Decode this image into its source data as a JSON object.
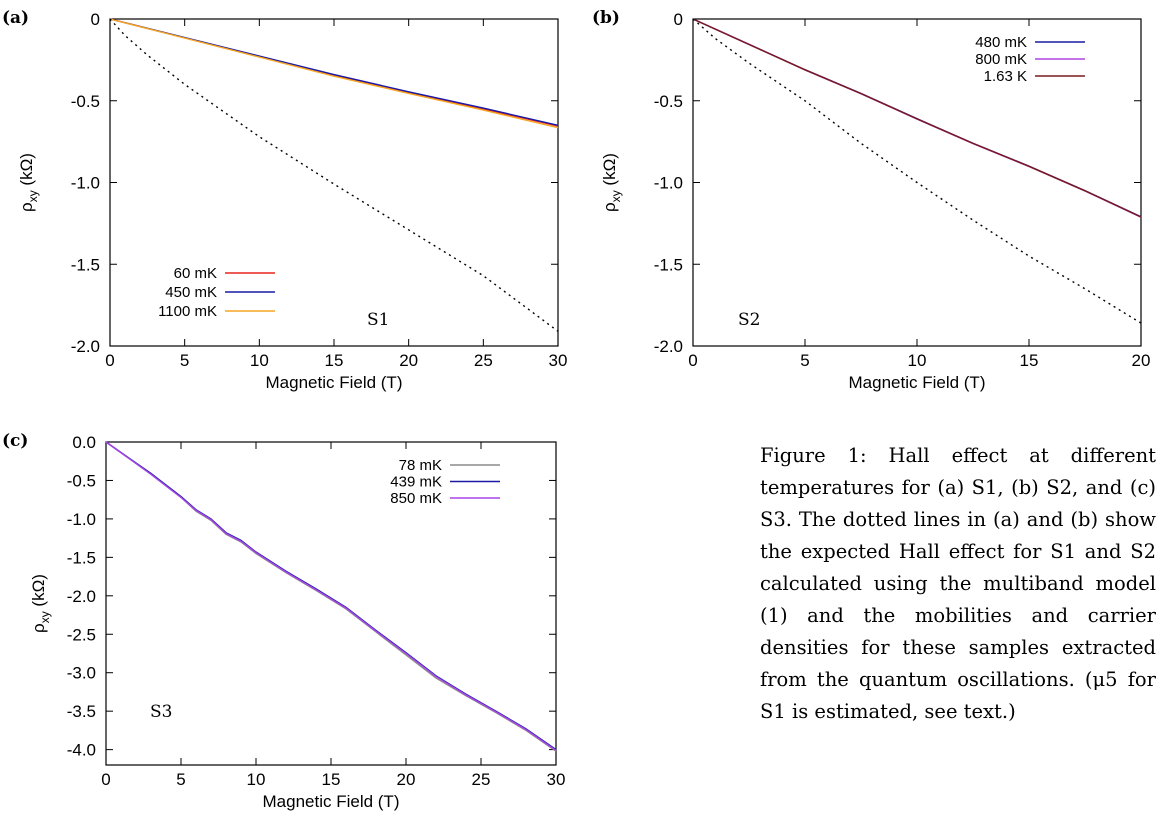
{
  "caption": "Figure 1: Hall effect at different temperatures for (a) S1, (b) S2, and (c) S3. The dotted lines in (a) and (b) show the expected Hall effect for S1 and S2 calculated using the multiband model (1) and the mobilities and carrier densities for these samples extracted from the quantum oscillations. (μ5 for S1 is estimated, see text.)",
  "chart_data": [
    {
      "panel": "(a)",
      "type": "line",
      "xlabel": "Magnetic Field  (T)",
      "ylabel": "ρxy  (kΩ)",
      "xlim": [
        0,
        30
      ],
      "ylim": [
        -2.0,
        0
      ],
      "xticks": [
        "0",
        "5",
        "10",
        "15",
        "20",
        "25",
        "30"
      ],
      "yticks": [
        "0",
        "-0.5",
        "-1.0",
        "-1.5",
        "-2.0"
      ],
      "annotation": "S1",
      "legend_position": "bottom-left",
      "series": [
        {
          "name": "60 mK",
          "color": "#e8251b",
          "x": [
            0,
            5,
            10,
            15,
            20,
            25,
            30
          ],
          "y": [
            0,
            -0.115,
            -0.23,
            -0.345,
            -0.45,
            -0.55,
            -0.655
          ]
        },
        {
          "name": "450 mK",
          "color": "#1a1aa6",
          "x": [
            0,
            5,
            10,
            15,
            20,
            25,
            30
          ],
          "y": [
            0,
            -0.113,
            -0.227,
            -0.34,
            -0.445,
            -0.545,
            -0.65
          ]
        },
        {
          "name": "1100 mK",
          "color": "#f5a623",
          "x": [
            0,
            5,
            10,
            15,
            20,
            25,
            30
          ],
          "y": [
            0,
            -0.117,
            -0.233,
            -0.35,
            -0.455,
            -0.557,
            -0.665
          ]
        },
        {
          "name": "",
          "color": "#000000",
          "style": "dotted",
          "x": [
            0,
            1,
            2.5,
            5,
            7.5,
            10,
            15,
            20,
            25,
            30
          ],
          "y": [
            0,
            -0.1,
            -0.22,
            -0.4,
            -0.56,
            -0.72,
            -1.01,
            -1.29,
            -1.57,
            -1.91
          ]
        }
      ]
    },
    {
      "panel": "(b)",
      "type": "line",
      "xlabel": "Magnetic Field  (T)",
      "ylabel": "ρxy  (kΩ)",
      "xlim": [
        0,
        20
      ],
      "ylim": [
        -2.0,
        0
      ],
      "xticks": [
        "0",
        "5",
        "10",
        "15",
        "20"
      ],
      "yticks": [
        "0",
        "-0.5",
        "-1.0",
        "-1.5",
        "-2.0"
      ],
      "annotation": "S2",
      "legend_position": "top-right",
      "series": [
        {
          "name": "480 mK",
          "color": "#1a1aa6",
          "x": [
            0,
            2.5,
            5,
            7.5,
            10,
            12.5,
            15,
            17.5,
            20
          ],
          "y": [
            0,
            -0.155,
            -0.31,
            -0.455,
            -0.61,
            -0.76,
            -0.9,
            -1.05,
            -1.21
          ]
        },
        {
          "name": "800 mK",
          "color": "#b044e0",
          "x": [
            0,
            2.5,
            5,
            7.5,
            10,
            12.5,
            15,
            17.5,
            20
          ],
          "y": [
            0,
            -0.155,
            -0.312,
            -0.457,
            -0.612,
            -0.762,
            -0.902,
            -1.052,
            -1.212
          ]
        },
        {
          "name": "1.63 K",
          "color": "#7a1a1a",
          "x": [
            0,
            2.5,
            5,
            7.5,
            10,
            12.5,
            15,
            17.5,
            20
          ],
          "y": [
            0,
            -0.156,
            -0.311,
            -0.456,
            -0.611,
            -0.761,
            -0.901,
            -1.051,
            -1.211
          ]
        },
        {
          "name": "",
          "color": "#000000",
          "style": "dotted",
          "x": [
            0,
            1,
            2.5,
            5,
            7.5,
            10,
            12.5,
            15,
            17.5,
            20
          ],
          "y": [
            0,
            -0.12,
            -0.27,
            -0.5,
            -0.76,
            -1.0,
            -1.23,
            -1.45,
            -1.65,
            -1.86
          ]
        }
      ]
    },
    {
      "panel": "(c)",
      "type": "line",
      "xlabel": "Magnetic Field  (T)",
      "ylabel": "ρxy  (kΩ)",
      "xlim": [
        0,
        30
      ],
      "ylim": [
        -4.2,
        0.0
      ],
      "xticks": [
        "0",
        "5",
        "10",
        "15",
        "20",
        "25",
        "30"
      ],
      "yticks": [
        "0.0",
        "-0.5",
        "-1.0",
        "-1.5",
        "-2.0",
        "-2.5",
        "-3.0",
        "-3.5",
        "-4.0"
      ],
      "annotation": "S3",
      "legend_position": "top-right",
      "series": [
        {
          "name": "78 mK",
          "color": "#8c8c8c",
          "x": [
            0,
            3,
            5,
            6,
            7,
            8,
            9,
            10,
            12,
            14,
            16,
            18,
            20,
            22,
            24,
            26,
            28,
            30
          ],
          "y": [
            0,
            -0.42,
            -0.72,
            -0.9,
            -1.02,
            -1.2,
            -1.3,
            -1.45,
            -1.7,
            -1.93,
            -2.17,
            -2.47,
            -2.77,
            -3.07,
            -3.3,
            -3.52,
            -3.75,
            -4.02
          ]
        },
        {
          "name": "439 mK",
          "color": "#1a1aa6",
          "x": [
            0,
            3,
            5,
            6,
            7,
            8,
            9,
            10,
            12,
            14,
            16,
            18,
            20,
            22,
            24,
            26,
            28,
            30
          ],
          "y": [
            0,
            -0.41,
            -0.71,
            -0.88,
            -1.0,
            -1.18,
            -1.28,
            -1.43,
            -1.68,
            -1.91,
            -2.15,
            -2.45,
            -2.74,
            -3.04,
            -3.28,
            -3.5,
            -3.73,
            -4.0
          ]
        },
        {
          "name": "850 mK",
          "color": "#a844e8",
          "x": [
            0,
            3,
            5,
            6,
            7,
            8,
            9,
            10,
            12,
            14,
            16,
            18,
            20,
            22,
            24,
            26,
            28,
            30
          ],
          "y": [
            0,
            -0.42,
            -0.72,
            -0.89,
            -1.01,
            -1.19,
            -1.29,
            -1.44,
            -1.69,
            -1.92,
            -2.16,
            -2.46,
            -2.75,
            -3.05,
            -3.29,
            -3.51,
            -3.74,
            -4.01
          ]
        }
      ]
    }
  ]
}
